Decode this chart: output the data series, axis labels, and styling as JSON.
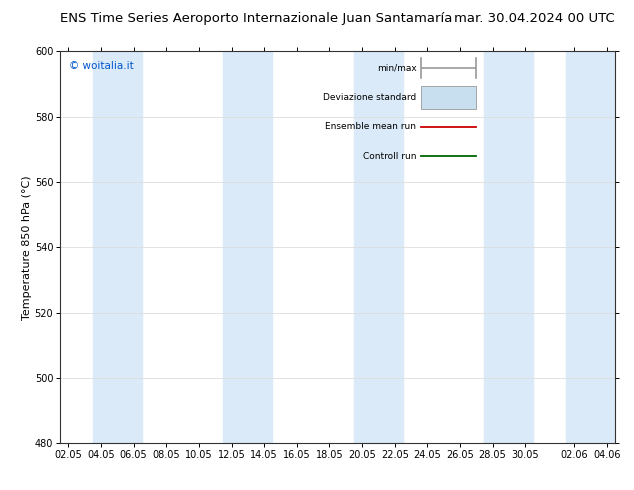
{
  "title_left": "ENS Time Series Aeroporto Internazionale Juan Santamaría",
  "title_right": "mar. 30.04.2024 00 UTC",
  "ylabel": "Temperature 850 hPa (°C)",
  "ylim": [
    480,
    600
  ],
  "yticks": [
    480,
    500,
    520,
    540,
    560,
    580,
    600
  ],
  "xtick_labels": [
    "02.05",
    "04.05",
    "06.05",
    "08.05",
    "10.05",
    "12.05",
    "14.05",
    "16.05",
    "18.05",
    "20.05",
    "22.05",
    "24.05",
    "26.05",
    "28.05",
    "30.05",
    "02.06",
    "04.06"
  ],
  "band_color": "#daeaf8",
  "background_color": "#ffffff",
  "watermark": "© woitalia.it",
  "watermark_color": "#0055cc",
  "ensemble_mean_color": "#cc0000",
  "control_run_color": "#006600",
  "min_max_color": "#999999",
  "std_dev_color": "#c8dff0",
  "title_fontsize": 9.5,
  "axis_fontsize": 8,
  "tick_fontsize": 7,
  "fig_bg_color": "#ffffff",
  "spine_color": "#333333",
  "gridline_color": "#dddddd"
}
